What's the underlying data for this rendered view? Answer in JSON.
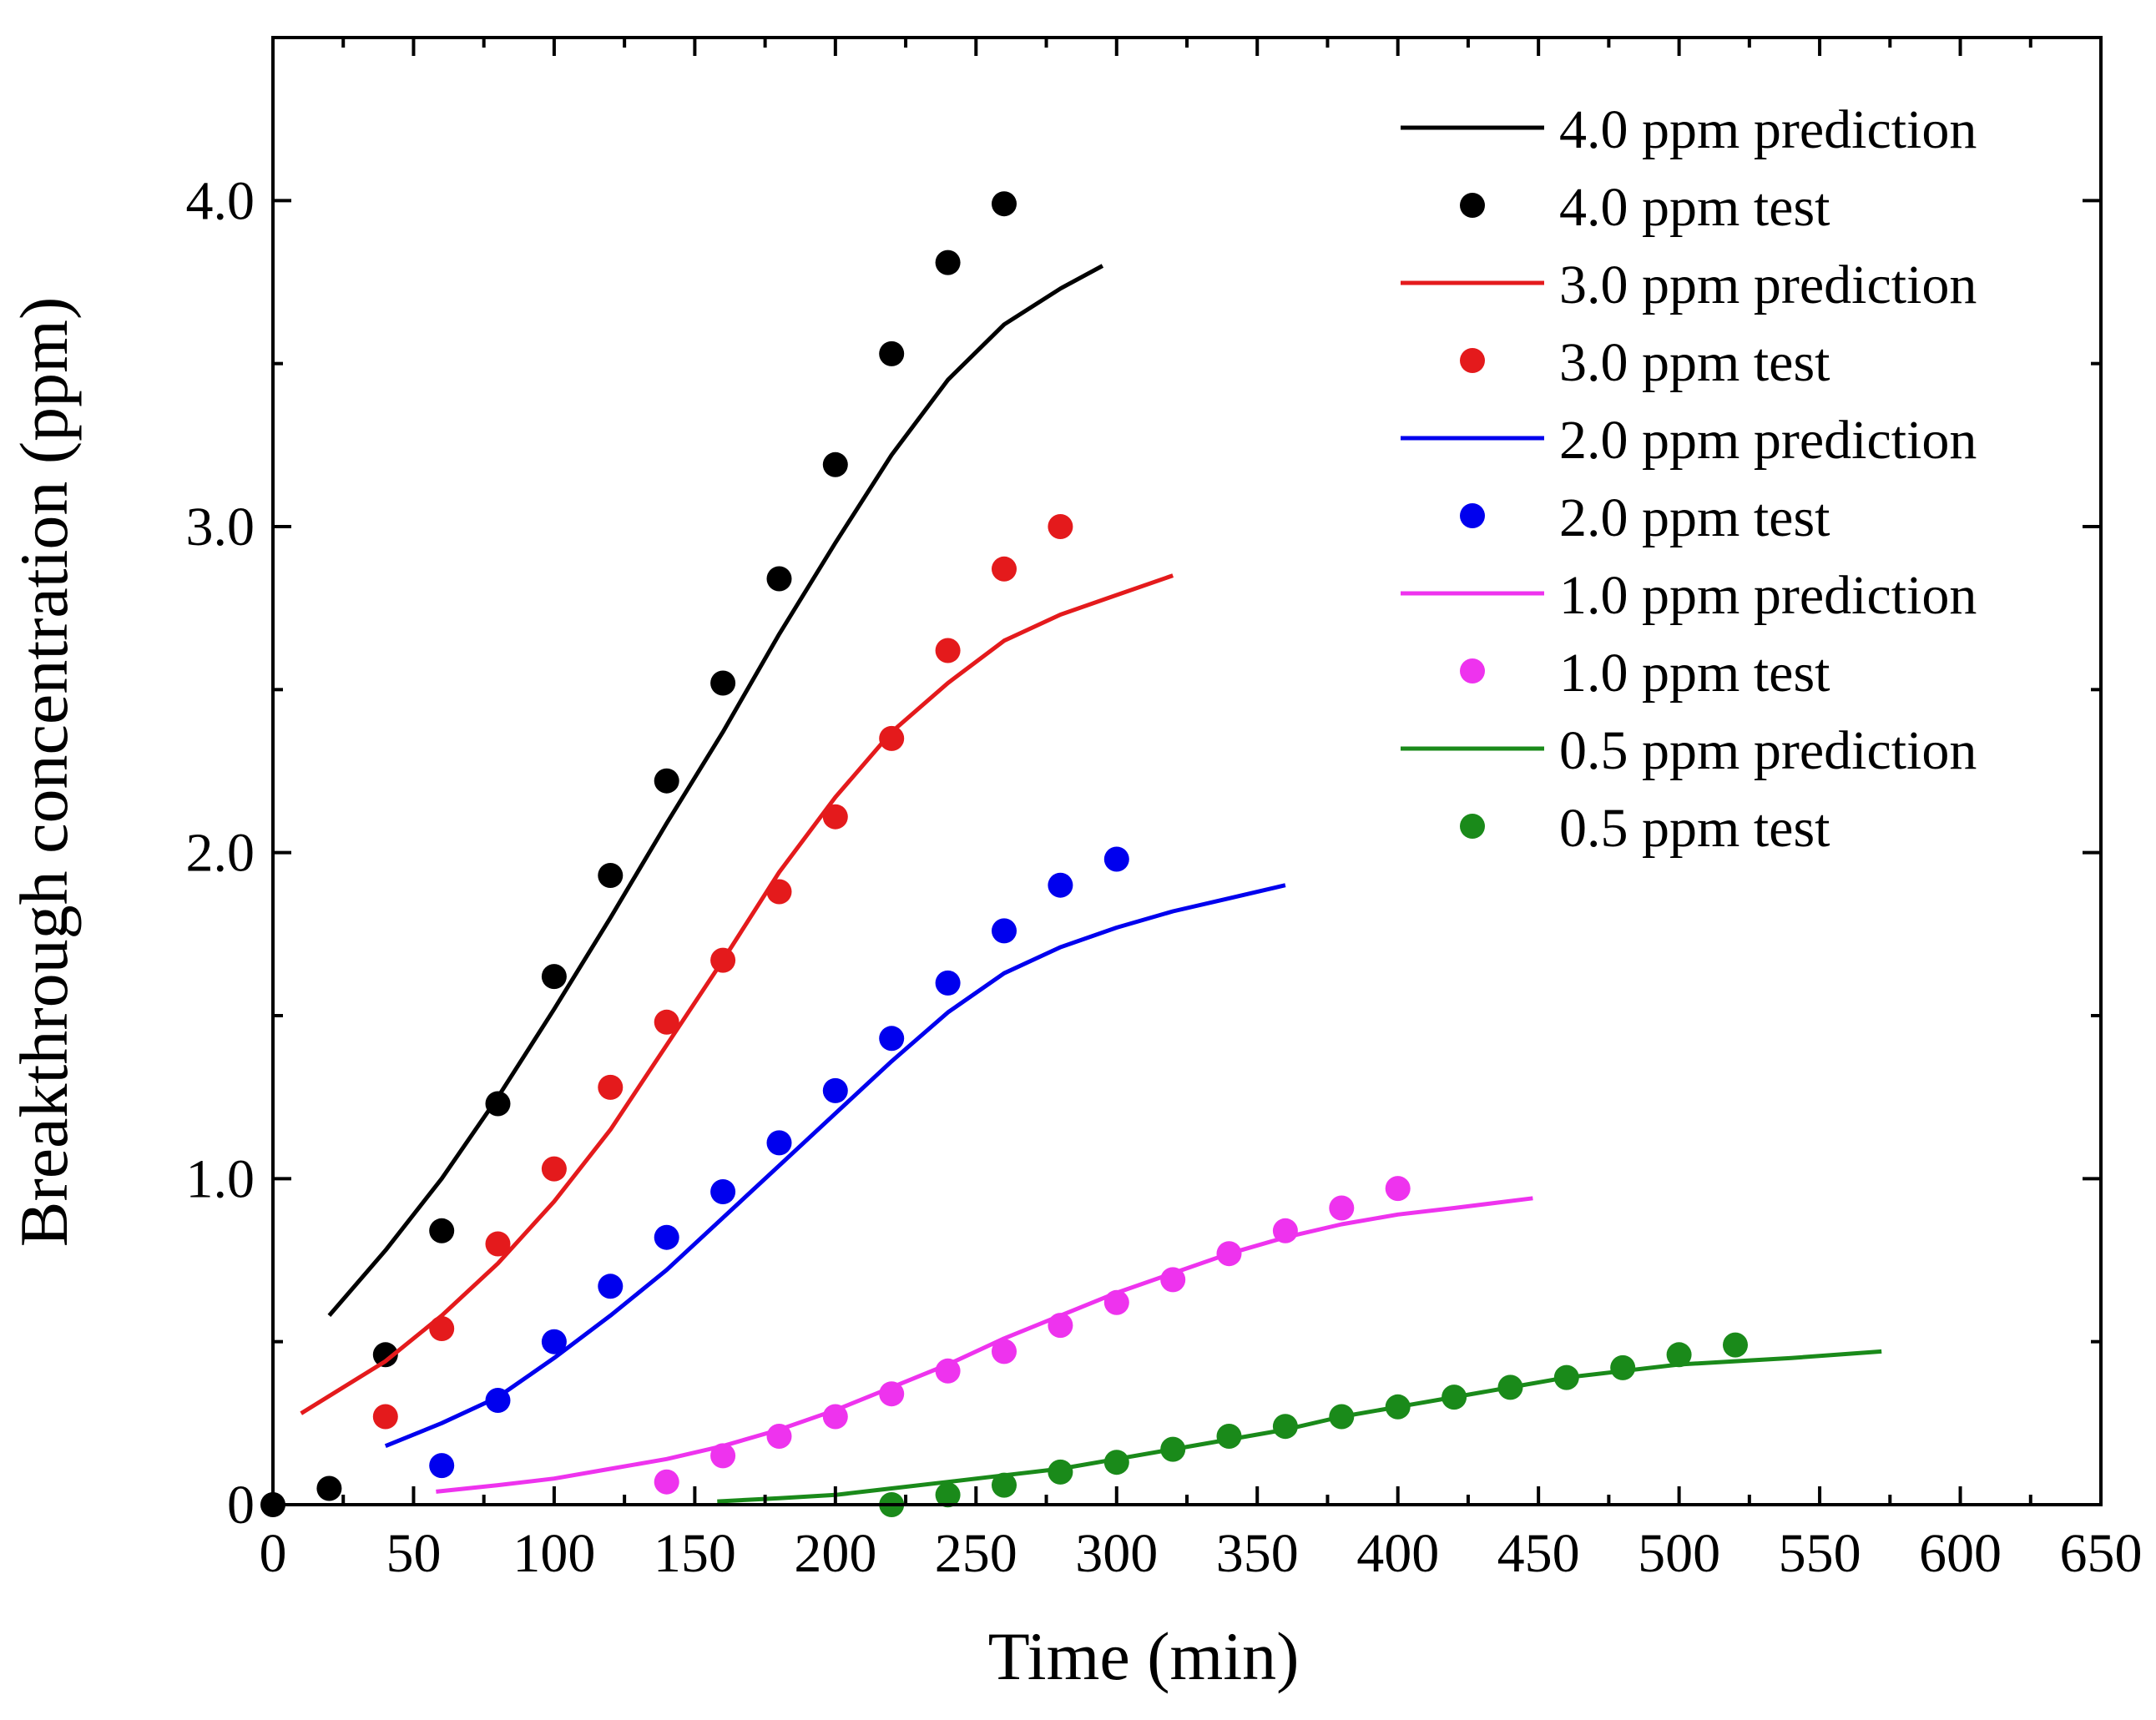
{
  "chart_data": {
    "type": "scatter",
    "title": "",
    "xlabel": "Time (min)",
    "ylabel": "Breakthrough concentration (ppm)",
    "xlim": [
      0,
      650
    ],
    "ylim": [
      0,
      4.5
    ],
    "x_ticks": [
      0,
      50,
      100,
      150,
      200,
      250,
      300,
      350,
      400,
      450,
      500,
      550,
      600,
      650
    ],
    "x_tick_labels": [
      "0",
      "50",
      "100",
      "150",
      "200",
      "250",
      "300",
      "350",
      "400",
      "450",
      "500",
      "550",
      "600",
      "650"
    ],
    "y_ticks": [
      0,
      1,
      2,
      3,
      4
    ],
    "y_tick_labels": [
      "0",
      "1.0",
      "2.0",
      "3.0",
      "4.0"
    ],
    "grid": false,
    "legend_position": "top-right",
    "series": [
      {
        "name": "4.0 ppm prediction",
        "kind": "line",
        "color": "#000000",
        "x": [
          20,
          40,
          60,
          80,
          100,
          120,
          140,
          160,
          180,
          200,
          220,
          240,
          260,
          280,
          295
        ],
        "y": [
          0.58,
          0.78,
          1.0,
          1.25,
          1.52,
          1.8,
          2.09,
          2.37,
          2.67,
          2.95,
          3.22,
          3.45,
          3.62,
          3.73,
          3.8
        ]
      },
      {
        "name": "4.0 ppm test",
        "kind": "scatter",
        "color": "#000000",
        "x": [
          0,
          20,
          40,
          60,
          80,
          100,
          120,
          140,
          160,
          180,
          200,
          220,
          240,
          260
        ],
        "y": [
          0.0,
          0.05,
          0.46,
          0.84,
          1.23,
          1.62,
          1.93,
          2.22,
          2.52,
          2.84,
          3.19,
          3.53,
          3.81,
          3.99
        ]
      },
      {
        "name": "3.0 ppm prediction",
        "kind": "line",
        "color": "#e41a1c",
        "x": [
          10,
          40,
          60,
          80,
          100,
          120,
          140,
          160,
          180,
          200,
          220,
          240,
          260,
          280,
          300,
          320
        ],
        "y": [
          0.28,
          0.44,
          0.58,
          0.74,
          0.93,
          1.15,
          1.41,
          1.67,
          1.94,
          2.17,
          2.37,
          2.52,
          2.65,
          2.73,
          2.79,
          2.85
        ]
      },
      {
        "name": "3.0 ppm test",
        "kind": "scatter",
        "color": "#e41a1c",
        "x": [
          40,
          60,
          80,
          100,
          120,
          140,
          160,
          180,
          200,
          220,
          240,
          260,
          280
        ],
        "y": [
          0.27,
          0.54,
          0.8,
          1.03,
          1.28,
          1.48,
          1.67,
          1.88,
          2.11,
          2.35,
          2.62,
          2.87,
          3.0
        ]
      },
      {
        "name": "2.0 ppm prediction",
        "kind": "line",
        "color": "#0000ee",
        "x": [
          40,
          60,
          80,
          100,
          120,
          140,
          160,
          180,
          200,
          220,
          240,
          260,
          280,
          300,
          320,
          340,
          360
        ],
        "y": [
          0.18,
          0.25,
          0.33,
          0.45,
          0.58,
          0.72,
          0.88,
          1.04,
          1.2,
          1.36,
          1.51,
          1.63,
          1.71,
          1.77,
          1.82,
          1.86,
          1.9
        ]
      },
      {
        "name": "2.0 ppm test",
        "kind": "scatter",
        "color": "#0000ee",
        "x": [
          60,
          80,
          100,
          120,
          140,
          160,
          180,
          200,
          220,
          240,
          260,
          280,
          300
        ],
        "y": [
          0.12,
          0.32,
          0.5,
          0.67,
          0.82,
          0.96,
          1.11,
          1.27,
          1.43,
          1.6,
          1.76,
          1.9,
          1.98
        ]
      },
      {
        "name": "1.0 ppm prediction",
        "kind": "line",
        "color": "#ee33ee",
        "x": [
          58,
          80,
          100,
          120,
          140,
          160,
          180,
          200,
          220,
          240,
          260,
          280,
          300,
          320,
          340,
          360,
          380,
          400,
          420,
          448
        ],
        "y": [
          0.04,
          0.06,
          0.08,
          0.11,
          0.14,
          0.18,
          0.23,
          0.29,
          0.36,
          0.43,
          0.51,
          0.58,
          0.65,
          0.71,
          0.77,
          0.82,
          0.86,
          0.89,
          0.91,
          0.94
        ]
      },
      {
        "name": "1.0 ppm test",
        "kind": "scatter",
        "color": "#ee33ee",
        "x": [
          140,
          160,
          180,
          200,
          220,
          240,
          260,
          280,
          300,
          320,
          340,
          360,
          380,
          400
        ],
        "y": [
          0.07,
          0.15,
          0.21,
          0.27,
          0.34,
          0.41,
          0.47,
          0.55,
          0.62,
          0.69,
          0.77,
          0.84,
          0.91,
          0.97
        ]
      },
      {
        "name": "0.5 ppm prediction",
        "kind": "line",
        "color": "#1a8a1a",
        "x": [
          158,
          180,
          200,
          220,
          240,
          260,
          280,
          300,
          320,
          340,
          360,
          380,
          400,
          420,
          440,
          460,
          480,
          500,
          520,
          540,
          572
        ],
        "y": [
          0.01,
          0.02,
          0.03,
          0.05,
          0.07,
          0.09,
          0.11,
          0.14,
          0.17,
          0.2,
          0.23,
          0.27,
          0.3,
          0.33,
          0.36,
          0.39,
          0.41,
          0.43,
          0.44,
          0.45,
          0.47
        ]
      },
      {
        "name": "0.5 ppm test",
        "kind": "scatter",
        "color": "#1a8a1a",
        "x": [
          220,
          240,
          260,
          280,
          300,
          320,
          340,
          360,
          380,
          400,
          420,
          440,
          460,
          480,
          500,
          520
        ],
        "y": [
          0.0,
          0.03,
          0.06,
          0.1,
          0.13,
          0.17,
          0.21,
          0.24,
          0.27,
          0.3,
          0.33,
          0.36,
          0.39,
          0.42,
          0.46,
          0.49
        ]
      }
    ]
  }
}
